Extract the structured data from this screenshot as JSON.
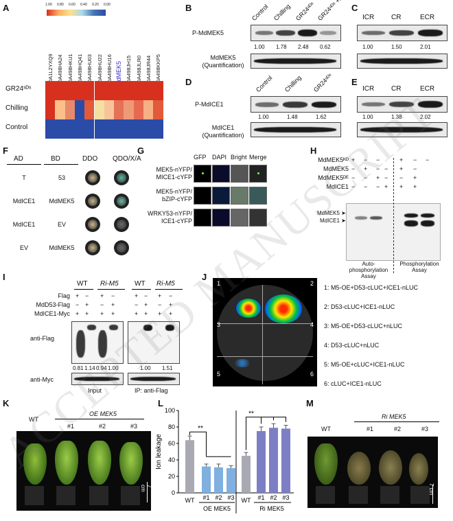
{
  "panels": {
    "A": {
      "label": "A",
      "scale": [
        "1.00",
        "0.80",
        "0.60",
        "0.40",
        "0.20",
        "0.00"
      ],
      "columns": [
        "A0A1L2YXQ9",
        "A0A498HA24",
        "A0A498HKU1",
        "A0A498HQ41",
        "A0A498HU03",
        "A0A498HU22",
        "A0A498HU16",
        "MdMEK5",
        "A0A498JH15",
        "A0A498JLR0",
        "A0A498JR44",
        "A0A498KKP5"
      ],
      "rows": [
        "GR24ˢᴰˢ",
        "Chilling",
        "Control"
      ]
    },
    "B": {
      "label": "B",
      "conditions": [
        "Control",
        "Chilling",
        "GR24ˢᴰˢ",
        "GR24ˢᴰˢ +λPPase"
      ],
      "row1": "P-MdMEK5",
      "row2": "MdMEK5 (Quantification)",
      "values": [
        "1.00",
        "1.78",
        "2.48",
        "0.62"
      ]
    },
    "C": {
      "label": "C",
      "conditions": [
        "ICR",
        "CR",
        "ECR"
      ],
      "values": [
        "1.00",
        "1.50",
        "2.01"
      ]
    },
    "D": {
      "label": "D",
      "conditions": [
        "Control",
        "Chilling",
        "GR24ˢᴰˢ"
      ],
      "row1": "P-MdICE1",
      "row2": "MdICE1 (Quantification)",
      "values": [
        "1.00",
        "1.48",
        "1.62"
      ]
    },
    "E": {
      "label": "E",
      "conditions": [
        "ICR",
        "CR",
        "ECR"
      ],
      "values": [
        "1.00",
        "1.38",
        "2.02"
      ]
    },
    "F": {
      "label": "F",
      "headers": [
        "AD",
        "BD",
        "DDO",
        "QDO/X/A"
      ],
      "rows": [
        {
          "ad": "T",
          "bd": "53"
        },
        {
          "ad": "MdICE1",
          "bd": "MdMEK5"
        },
        {
          "ad": "MdICE1",
          "bd": "EV"
        },
        {
          "ad": "EV",
          "bd": "MdMEK5"
        }
      ]
    },
    "G": {
      "label": "G",
      "headers": [
        "GFP",
        "DAPI",
        "Bright",
        "Merge"
      ],
      "rows": [
        "MEK5-nYFP/ MICE1-cYFP",
        "MEK5-nYFP/ bZIP-cYFP",
        "WRKY53-nYFP/ ICE1-cYFP"
      ]
    },
    "H": {
      "label": "H",
      "rows": [
        "MdMEK5ᴷᴰ",
        "MdMEK5",
        "MdMEK5ᴰᴱ",
        "MdICE1"
      ],
      "signs": [
        [
          "+",
          "−",
          "−",
          "−",
          "+",
          "−",
          "−"
        ],
        [
          "−",
          "+",
          "−",
          "−",
          "+",
          "−",
          ""
        ],
        [
          "−",
          "−",
          "+",
          "−",
          "−",
          "+",
          ""
        ],
        [
          "−",
          "−",
          "−",
          "+",
          "+",
          "+",
          ""
        ]
      ],
      "bands": [
        "MdMEK5",
        "MdICE1"
      ],
      "assay1": "Auto-phosphorylation Assay",
      "assay2": "Phosphorylation Assay"
    },
    "I": {
      "label": "I",
      "groups": [
        "WT",
        "Ri-M5",
        "WT",
        "Ri-M5"
      ],
      "rows": [
        "Flag",
        "MdD53-Flag",
        "MdICE1-Myc"
      ],
      "blot1": "anti-Flag",
      "blot2": "anti-Myc",
      "input_values": [
        "0.81",
        "1.14",
        "0.94",
        "1.00"
      ],
      "ip_values": [
        "1.00",
        "1.51"
      ],
      "input_label": "Input",
      "ip_label": "IP: anti-Flag"
    },
    "J": {
      "label": "J",
      "sections": [
        "1",
        "2",
        "3",
        "4",
        "5",
        "6"
      ],
      "legend": [
        "1: M5-OE+D53-cLUC+ICE1-nLUC",
        "2: D53-cLUC+ICE1-nLUC",
        "3: M5-OE+D53-cLUC+nLUC",
        "4: D53-cLUC+nLUC",
        "5: M5-OE+cLUC+ICE1-nLUC",
        "6: cLUC+ICE1-nLUC"
      ]
    },
    "K": {
      "label": "K",
      "wt": "WT",
      "group": "OE MEK5",
      "lines": [
        "#1",
        "#2",
        "#3"
      ],
      "scale": "7 cm"
    },
    "M": {
      "label": "M",
      "wt": "WT",
      "group": "Ri MEK5",
      "lines": [
        "#1",
        "#2",
        "#3"
      ],
      "scale": "7 cm"
    }
  },
  "watermark": "ACCEPTED MANUSCRIPT",
  "chart_data": {
    "type": "bar",
    "label": "L",
    "ylabel": "Ion leakage",
    "ylim": [
      0,
      100
    ],
    "yticks": [
      0,
      20,
      40,
      60,
      80,
      100
    ],
    "categories": [
      "WT",
      "#1",
      "#2",
      "#3",
      "WT",
      "#1",
      "#2",
      "#3"
    ],
    "groups": [
      "OE MEK5",
      "Ri MEK5"
    ],
    "values": [
      64,
      32,
      31,
      30,
      45,
      75,
      79,
      78
    ],
    "errors": [
      5,
      3,
      4,
      3,
      4,
      5,
      5,
      4
    ],
    "colors": [
      "#a9a9b3",
      "#7fb0e0",
      "#7fb0e0",
      "#7fb0e0",
      "#a9a9b3",
      "#7d7fc4",
      "#7d7fc4",
      "#7d7fc4"
    ],
    "significance": [
      "**",
      "**"
    ]
  }
}
